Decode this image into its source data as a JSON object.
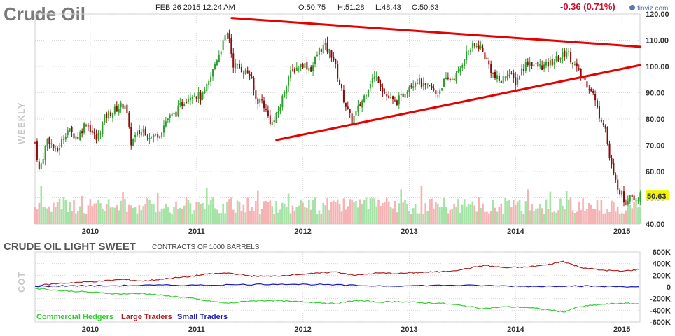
{
  "header": {
    "title": "Crude Oil",
    "date": "FEB 26 2015 12:24 AM",
    "open": "O:50.75",
    "high": "H:51.28",
    "low": "L:48.43",
    "close": "C:50.63",
    "change": "-0.36 (0.71%)",
    "brand": "finviz.com"
  },
  "colors": {
    "up_candle": "#2e9e2e",
    "down_candle": "#8b0a0a",
    "vol_up": "#a6e3a6",
    "vol_down": "#f6b3b3",
    "trendline": "#e60000",
    "price_tag_bg": "#f5f500",
    "commercial": "#33cc33",
    "large": "#b02020",
    "small": "#1a1ab8"
  },
  "chart_data": [
    {
      "type": "candlestick",
      "name": "price",
      "side_label": "WEEKLY",
      "ylim": [
        40,
        120
      ],
      "yticks": [
        "120.00",
        "110.00",
        "100.00",
        "90.00",
        "80.00",
        "70.00",
        "60.00",
        "50.00",
        "40.00"
      ],
      "xticks": [
        "2010",
        "2011",
        "2012",
        "2013",
        "2014",
        "2015"
      ],
      "xtick_time": [
        2010.0,
        2011.0,
        2012.0,
        2013.0,
        2014.0,
        2015.0
      ],
      "xlim": [
        2009.48,
        2015.17
      ],
      "last_price": "50.63",
      "anchors": [
        [
          2009.48,
          71
        ],
        [
          2009.52,
          60
        ],
        [
          2009.6,
          73
        ],
        [
          2009.68,
          67
        ],
        [
          2009.78,
          76
        ],
        [
          2009.88,
          73
        ],
        [
          2009.96,
          79
        ],
        [
          2010.06,
          72
        ],
        [
          2010.14,
          81
        ],
        [
          2010.25,
          84
        ],
        [
          2010.33,
          86
        ],
        [
          2010.38,
          71
        ],
        [
          2010.44,
          74
        ],
        [
          2010.5,
          76
        ],
        [
          2010.58,
          73
        ],
        [
          2010.66,
          75
        ],
        [
          2010.72,
          80
        ],
        [
          2010.8,
          82
        ],
        [
          2010.88,
          87
        ],
        [
          2010.96,
          90
        ],
        [
          2011.05,
          88
        ],
        [
          2011.12,
          94
        ],
        [
          2011.18,
          102
        ],
        [
          2011.26,
          110
        ],
        [
          2011.3,
          113
        ],
        [
          2011.34,
          101
        ],
        [
          2011.42,
          99
        ],
        [
          2011.5,
          97
        ],
        [
          2011.56,
          87
        ],
        [
          2011.62,
          87
        ],
        [
          2011.68,
          80
        ],
        [
          2011.72,
          78
        ],
        [
          2011.78,
          84
        ],
        [
          2011.86,
          96
        ],
        [
          2011.92,
          99
        ],
        [
          2012.0,
          101
        ],
        [
          2012.08,
          99
        ],
        [
          2012.15,
          106
        ],
        [
          2012.2,
          108
        ],
        [
          2012.28,
          104
        ],
        [
          2012.36,
          91
        ],
        [
          2012.42,
          83
        ],
        [
          2012.46,
          79
        ],
        [
          2012.52,
          84
        ],
        [
          2012.58,
          89
        ],
        [
          2012.64,
          95
        ],
        [
          2012.7,
          96
        ],
        [
          2012.78,
          89
        ],
        [
          2012.86,
          86
        ],
        [
          2012.92,
          88
        ],
        [
          2013.0,
          93
        ],
        [
          2013.08,
          95
        ],
        [
          2013.14,
          92
        ],
        [
          2013.2,
          92
        ],
        [
          2013.26,
          89
        ],
        [
          2013.32,
          94
        ],
        [
          2013.38,
          95
        ],
        [
          2013.46,
          97
        ],
        [
          2013.52,
          104
        ],
        [
          2013.58,
          107
        ],
        [
          2013.66,
          108
        ],
        [
          2013.72,
          103
        ],
        [
          2013.8,
          96
        ],
        [
          2013.86,
          94
        ],
        [
          2013.92,
          98
        ],
        [
          2014.0,
          94
        ],
        [
          2014.06,
          99
        ],
        [
          2014.12,
          102
        ],
        [
          2014.2,
          100
        ],
        [
          2014.28,
          100
        ],
        [
          2014.36,
          102
        ],
        [
          2014.44,
          104
        ],
        [
          2014.48,
          106
        ],
        [
          2014.54,
          102
        ],
        [
          2014.6,
          97
        ],
        [
          2014.66,
          94
        ],
        [
          2014.72,
          91
        ],
        [
          2014.78,
          82
        ],
        [
          2014.84,
          78
        ],
        [
          2014.88,
          66
        ],
        [
          2014.93,
          57
        ],
        [
          2014.98,
          53
        ],
        [
          2015.03,
          48
        ],
        [
          2015.08,
          52
        ],
        [
          2015.13,
          50
        ],
        [
          2015.16,
          50.6
        ]
      ],
      "annotations": [
        {
          "kind": "resistance-trendline",
          "from": [
            2011.33,
            118.5
          ],
          "to": [
            2015.17,
            107.5
          ]
        },
        {
          "kind": "support-trendline",
          "from": [
            2011.75,
            72
          ],
          "to": [
            2015.17,
            100.5
          ]
        }
      ]
    },
    {
      "type": "line",
      "name": "cot",
      "title": "CRUDE OIL LIGHT SWEET",
      "subtitle": "CONTRACTS OF 1000 BARRELS",
      "side_label": "COT",
      "ylim": [
        -600000,
        600000
      ],
      "yticks": [
        "600K",
        "400K",
        "200K",
        "0",
        "-200K",
        "-400K",
        "-600K"
      ],
      "xticks": [
        "2010",
        "2011",
        "2012",
        "2013",
        "2014",
        "2015"
      ],
      "series": [
        {
          "name": "Commercial Hedgers",
          "color_key": "commercial",
          "points": [
            [
              2009.48,
              -20000
            ],
            [
              2009.7,
              -60000
            ],
            [
              2009.9,
              -80000
            ],
            [
              2010.1,
              -100000
            ],
            [
              2010.3,
              -120000
            ],
            [
              2010.5,
              -110000
            ],
            [
              2010.7,
              -150000
            ],
            [
              2010.9,
              -180000
            ],
            [
              2011.1,
              -240000
            ],
            [
              2011.3,
              -280000
            ],
            [
              2011.5,
              -240000
            ],
            [
              2011.7,
              -230000
            ],
            [
              2011.9,
              -250000
            ],
            [
              2012.1,
              -260000
            ],
            [
              2012.3,
              -290000
            ],
            [
              2012.5,
              -230000
            ],
            [
              2012.7,
              -260000
            ],
            [
              2012.9,
              -250000
            ],
            [
              2013.1,
              -270000
            ],
            [
              2013.3,
              -280000
            ],
            [
              2013.5,
              -320000
            ],
            [
              2013.7,
              -370000
            ],
            [
              2013.9,
              -340000
            ],
            [
              2014.1,
              -350000
            ],
            [
              2014.3,
              -390000
            ],
            [
              2014.45,
              -430000
            ],
            [
              2014.6,
              -340000
            ],
            [
              2014.8,
              -300000
            ],
            [
              2015.0,
              -280000
            ],
            [
              2015.16,
              -290000
            ]
          ]
        },
        {
          "name": "Large Traders",
          "color_key": "large",
          "points": [
            [
              2009.48,
              20000
            ],
            [
              2009.7,
              60000
            ],
            [
              2009.9,
              80000
            ],
            [
              2010.1,
              100000
            ],
            [
              2010.3,
              130000
            ],
            [
              2010.5,
              100000
            ],
            [
              2010.7,
              140000
            ],
            [
              2010.9,
              170000
            ],
            [
              2011.1,
              220000
            ],
            [
              2011.3,
              240000
            ],
            [
              2011.5,
              190000
            ],
            [
              2011.7,
              180000
            ],
            [
              2011.9,
              210000
            ],
            [
              2012.1,
              230000
            ],
            [
              2012.3,
              260000
            ],
            [
              2012.5,
              200000
            ],
            [
              2012.7,
              240000
            ],
            [
              2012.9,
              230000
            ],
            [
              2013.1,
              250000
            ],
            [
              2013.3,
              260000
            ],
            [
              2013.5,
              300000
            ],
            [
              2013.7,
              370000
            ],
            [
              2013.9,
              330000
            ],
            [
              2014.1,
              340000
            ],
            [
              2014.3,
              380000
            ],
            [
              2014.45,
              440000
            ],
            [
              2014.6,
              340000
            ],
            [
              2014.8,
              290000
            ],
            [
              2015.0,
              270000
            ],
            [
              2015.16,
              300000
            ]
          ]
        },
        {
          "name": "Small Traders",
          "color_key": "small",
          "points": [
            [
              2009.48,
              10000
            ],
            [
              2009.8,
              20000
            ],
            [
              2010.2,
              20000
            ],
            [
              2010.6,
              30000
            ],
            [
              2011.0,
              30000
            ],
            [
              2011.4,
              40000
            ],
            [
              2011.8,
              50000
            ],
            [
              2012.2,
              40000
            ],
            [
              2012.6,
              20000
            ],
            [
              2013.0,
              20000
            ],
            [
              2013.4,
              30000
            ],
            [
              2013.8,
              20000
            ],
            [
              2014.2,
              10000
            ],
            [
              2014.5,
              20000
            ],
            [
              2014.8,
              10000
            ],
            [
              2015.16,
              5000
            ]
          ]
        }
      ]
    }
  ]
}
